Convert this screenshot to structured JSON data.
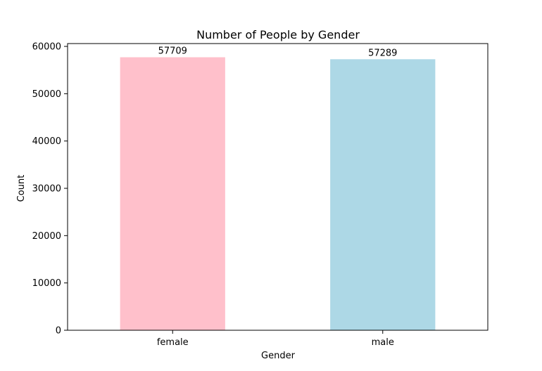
{
  "chart_data": {
    "type": "bar",
    "title": "Number of People by Gender",
    "xlabel": "Gender",
    "ylabel": "Count",
    "categories": [
      "female",
      "male"
    ],
    "values": [
      57709,
      57289
    ],
    "data_labels": [
      "57709",
      "57289"
    ],
    "colors": [
      "#ffc0cb",
      "#add8e6"
    ],
    "ylim": [
      0,
      60600
    ],
    "yticks": [
      0,
      10000,
      20000,
      30000,
      40000,
      50000,
      60000
    ],
    "ytick_labels": [
      "0",
      "10000",
      "20000",
      "30000",
      "40000",
      "50000",
      "60000"
    ],
    "grid": false,
    "legend": "none"
  }
}
